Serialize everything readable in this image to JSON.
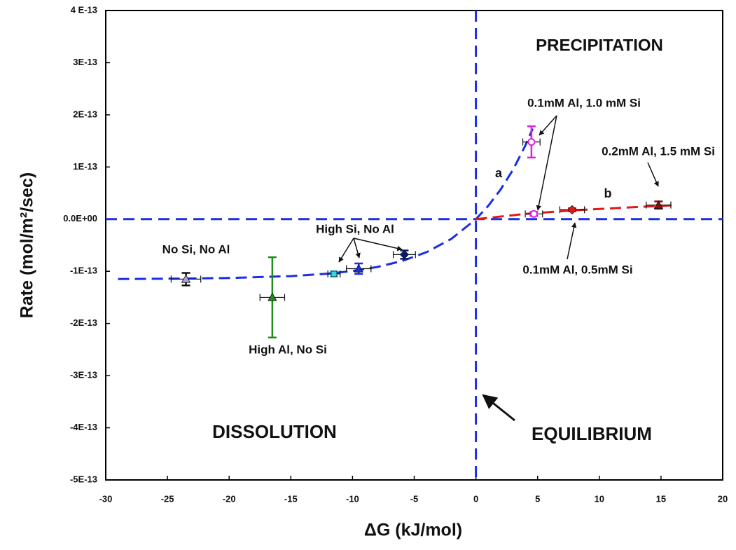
{
  "chart_data": {
    "type": "scatter",
    "xlabel": "ΔG (kJ/mol)",
    "ylabel": "Rate (mol/m²/sec)",
    "xlim": [
      -30,
      20
    ],
    "xticks": [
      -30,
      -25,
      -20,
      -15,
      -10,
      -5,
      0,
      5,
      10,
      15,
      20
    ],
    "ylim": [
      -5e-13,
      4e-13
    ],
    "yticks": [
      {
        "value": -5e-13,
        "label": "-5E-13"
      },
      {
        "value": -4e-13,
        "label": "-4E-13"
      },
      {
        "value": -3e-13,
        "label": "-3E-13"
      },
      {
        "value": -2e-13,
        "label": "-2E-13"
      },
      {
        "value": -1e-13,
        "label": "-1E-13"
      },
      {
        "value": 0,
        "label": "0.0E+00"
      },
      {
        "value": 1e-13,
        "label": "1E-13"
      },
      {
        "value": 2e-13,
        "label": "2E-13"
      },
      {
        "value": 3e-13,
        "label": "3E-13"
      },
      {
        "value": 4e-13,
        "label": "4 E-13"
      }
    ],
    "reference_lines": {
      "x": 0,
      "y": 0,
      "color": "#1a2ee6"
    },
    "series": [
      {
        "marker": "triangle",
        "color": "#b39ddb",
        "x": [
          -23.5
        ],
        "values": [
          -1.15e-13
        ],
        "xerr": [
          1.2
        ],
        "yerr": [
          1.2e-14
        ]
      },
      {
        "marker": "triangle",
        "color": "#1f8a1f",
        "x": [
          -16.5
        ],
        "values": [
          -1.5e-13
        ],
        "xerr": [
          1.0
        ],
        "yerr": [
          7.7e-14
        ]
      },
      {
        "marker": "square",
        "color": "#2fd6e6",
        "x": [
          -11.5
        ],
        "values": [
          -1.05e-13
        ],
        "xerr": [
          0.5
        ],
        "yerr": [
          5e-15
        ]
      },
      {
        "marker": "triangle",
        "color": "#1a2ee6",
        "x": [
          -9.5
        ],
        "values": [
          -9.5e-14
        ],
        "xerr": [
          1.0
        ],
        "yerr": [
          1e-14
        ]
      },
      {
        "marker": "diamond",
        "color": "#0a1a6e",
        "x": [
          -5.8
        ],
        "values": [
          -6.8e-14
        ],
        "xerr": [
          0.9
        ],
        "yerr": [
          8e-15
        ]
      },
      {
        "marker": "circle",
        "color": "#e020d8",
        "x": [
          4.5,
          4.7
        ],
        "values": [
          1.48e-13,
          1e-14
        ],
        "xerr": [
          0.7,
          0.7
        ],
        "yerr": [
          3e-14,
          4e-15
        ]
      },
      {
        "marker": "diamond",
        "color": "#e01818",
        "x": [
          7.8
        ],
        "values": [
          1.8e-14
        ],
        "xerr": [
          1.0
        ],
        "yerr": [
          3e-15
        ]
      },
      {
        "marker": "triangle",
        "color": "#8b0a0a",
        "x": [
          14.8
        ],
        "values": [
          2.7e-14
        ],
        "xerr": [
          1.0
        ],
        "yerr": [
          7e-15
        ]
      }
    ],
    "curves": [
      {
        "color": "#1a2ee6",
        "x": [
          -29,
          -25,
          -20,
          -15,
          -12,
          -10,
          -8,
          -6,
          -4,
          -2,
          0,
          1,
          2,
          3,
          4,
          4.6
        ],
        "values": [
          -1.147e-13,
          -1.142e-13,
          -1.129e-13,
          -1.093e-13,
          -1.046e-13,
          -9.94e-14,
          -9.18e-14,
          -8.04e-14,
          -6.33e-14,
          -3.79e-14,
          0,
          2.55e-14,
          5.66e-14,
          9.45e-14,
          1.409e-13,
          1.736e-13
        ]
      },
      {
        "color": "#e01818",
        "x": [
          0,
          4,
          8,
          12,
          16.3
        ],
        "values": [
          0,
          1e-14,
          1.7e-14,
          2.2e-14,
          2.7e-14
        ]
      }
    ],
    "annotations": [
      "PRECIPITATION",
      "DISSOLUTION",
      "EQUILIBRIUM",
      "No Si, No Al",
      "High Al, No Si",
      "High Si, No Al",
      "0.1mM Al, 1.0 mM Si",
      "0.2mM Al, 1.5 mM Si",
      "0.1mM Al, 0.5mM Si",
      "a",
      "b"
    ]
  }
}
